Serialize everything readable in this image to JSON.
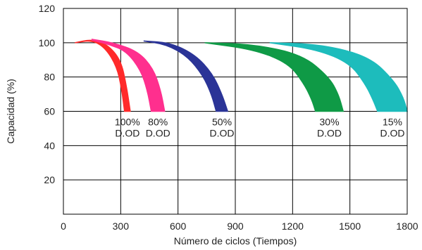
{
  "chart_data": {
    "type": "area",
    "title": "",
    "xlabel": "Número de ciclos (Tiempos)",
    "ylabel": "Capacidad (%)",
    "xlim": [
      0,
      1800
    ],
    "ylim": [
      0,
      120
    ],
    "x_ticks": [
      "0",
      "300",
      "600",
      "900",
      "1200",
      "1500",
      "1800"
    ],
    "y_ticks": [
      "20",
      "40",
      "60",
      "80",
      "100",
      "120"
    ],
    "grid": true,
    "series": [
      {
        "name": "100% D.OD",
        "line1": "100%",
        "line2": "D.OD",
        "color": "#ff2a2a",
        "upper": [
          [
            60,
            100
          ],
          [
            150,
            102
          ],
          [
            230,
            99
          ],
          [
            300,
            90
          ],
          [
            330,
            75
          ],
          [
            350,
            60
          ]
        ],
        "lower": [
          [
            60,
            100
          ],
          [
            150,
            101.5
          ],
          [
            220,
            97
          ],
          [
            280,
            86
          ],
          [
            305,
            73
          ],
          [
            320,
            60
          ]
        ]
      },
      {
        "name": "80% D.OD",
        "line1": "80%",
        "line2": "D.OD",
        "color": "#ff2f8e",
        "upper": [
          [
            150,
            102
          ],
          [
            260,
            100
          ],
          [
            390,
            95
          ],
          [
            470,
            85
          ],
          [
            510,
            72
          ],
          [
            530,
            60
          ]
        ],
        "lower": [
          [
            150,
            101.5
          ],
          [
            240,
            99
          ],
          [
            330,
            95
          ],
          [
            405,
            84
          ],
          [
            440,
            72
          ],
          [
            460,
            60
          ]
        ]
      },
      {
        "name": "50% D.OD",
        "line1": "50%",
        "line2": "D.OD",
        "color": "#2b3497",
        "upper": [
          [
            420,
            101
          ],
          [
            560,
            100
          ],
          [
            690,
            93
          ],
          [
            780,
            82
          ],
          [
            830,
            70
          ],
          [
            860,
            60
          ]
        ],
        "lower": [
          [
            420,
            101
          ],
          [
            540,
            99
          ],
          [
            650,
            92
          ],
          [
            730,
            81
          ],
          [
            775,
            70
          ],
          [
            800,
            60
          ]
        ]
      },
      {
        "name": "30% D.OD",
        "line1": "30%",
        "line2": "D.OD",
        "color": "#0f9a46",
        "upper": [
          [
            740,
            100
          ],
          [
            1000,
            99
          ],
          [
            1250,
            93
          ],
          [
            1390,
            80
          ],
          [
            1440,
            70
          ],
          [
            1465,
            60
          ]
        ],
        "lower": [
          [
            740,
            100
          ],
          [
            1000,
            96
          ],
          [
            1180,
            88
          ],
          [
            1260,
            76
          ],
          [
            1300,
            67
          ],
          [
            1320,
            60
          ]
        ]
      },
      {
        "name": "15% D.OD",
        "line1": "15%",
        "line2": "D.OD",
        "color": "#1dbcbc",
        "upper": [
          [
            1080,
            100
          ],
          [
            1350,
            99
          ],
          [
            1600,
            92
          ],
          [
            1730,
            78
          ],
          [
            1780,
            68
          ],
          [
            1800,
            60
          ]
        ],
        "lower": [
          [
            1080,
            100
          ],
          [
            1330,
            96
          ],
          [
            1500,
            88
          ],
          [
            1580,
            76
          ],
          [
            1620,
            67
          ],
          [
            1645,
            60
          ]
        ]
      }
    ]
  }
}
